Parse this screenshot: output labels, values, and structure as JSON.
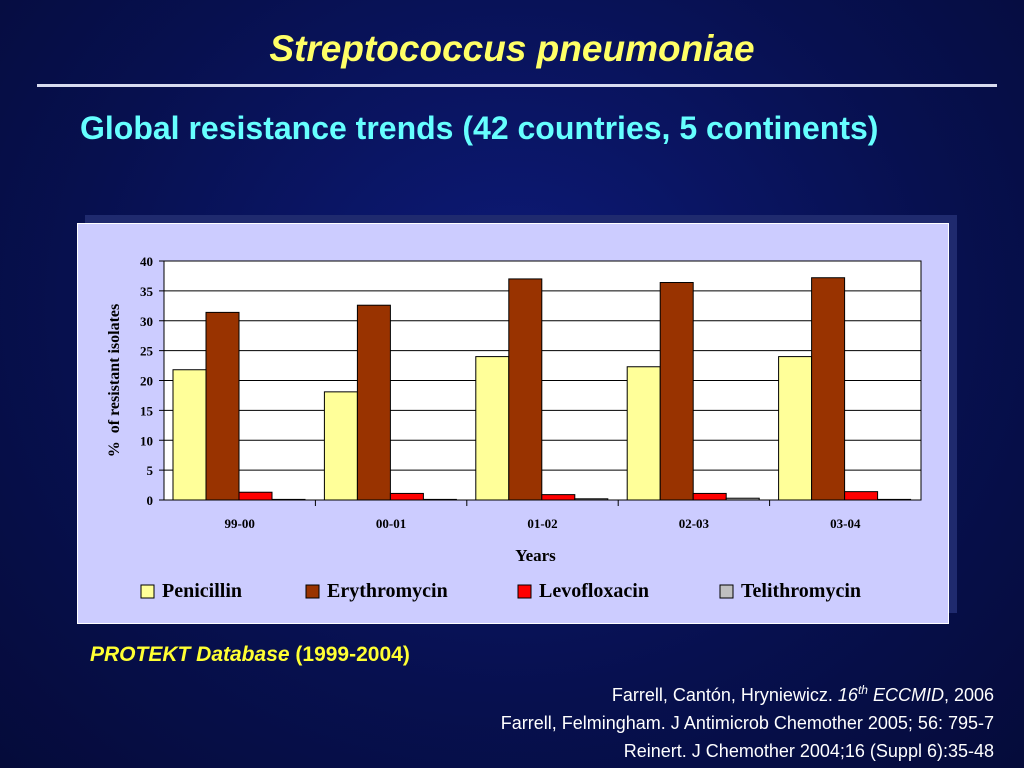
{
  "title": "Streptococcus pneumoniae",
  "subtitle": "Global resistance trends (42 countries, 5 continents)",
  "source": {
    "name": "PROTEKT Database",
    "years": "(1999-2004)"
  },
  "references": [
    {
      "pre": "Farrell, Cantón, Hryniewicz. ",
      "num": "16",
      "sup": "th",
      "ital": " ECCMID",
      "post": ", 2006"
    },
    {
      "text": "Farrell, Felmingham. J Antimicrob Chemother 2005; 56: 795-7"
    },
    {
      "text": "Reinert. J Chemother 2004;16 (Suppl 6):35-48"
    }
  ],
  "chart_data": {
    "type": "bar",
    "title": "",
    "xlabel": "Years",
    "ylabel": "%  of resistant isolates",
    "ylim": [
      0,
      40
    ],
    "yticks": [
      0,
      5,
      10,
      15,
      20,
      25,
      30,
      35,
      40
    ],
    "grid": true,
    "legend_position": "bottom",
    "categories": [
      "99-00",
      "00-01",
      "01-02",
      "02-03",
      "03-04"
    ],
    "series": [
      {
        "name": "Penicillin",
        "color": "#ffff99",
        "values": [
          21.8,
          18.1,
          24.0,
          22.3,
          24.0
        ]
      },
      {
        "name": "Erythromycin",
        "color": "#993300",
        "values": [
          31.4,
          32.6,
          37.0,
          36.4,
          37.2
        ]
      },
      {
        "name": "Levofloxacin",
        "color": "#ff0000",
        "values": [
          1.3,
          1.1,
          0.9,
          1.1,
          1.4
        ]
      },
      {
        "name": "Telithromycin",
        "color": "#c0c0c0",
        "values": [
          0.1,
          0.1,
          0.2,
          0.3,
          0.1
        ]
      }
    ]
  }
}
